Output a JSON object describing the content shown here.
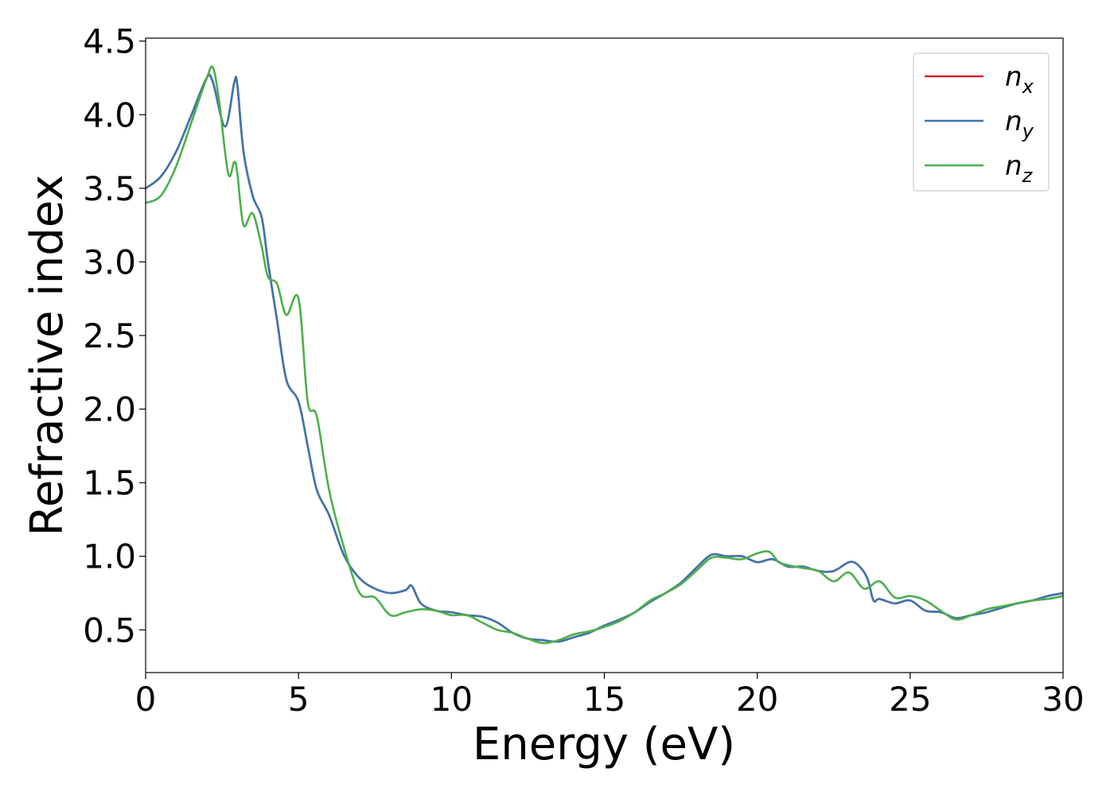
{
  "chart_data": {
    "type": "line",
    "title": "",
    "xlabel": "Energy (eV)",
    "ylabel": "Refractive index",
    "xlim": [
      0,
      30
    ],
    "ylim": [
      0.21,
      4.52
    ],
    "xticks": [
      0,
      5,
      10,
      15,
      20,
      25,
      30
    ],
    "yticks": [
      0.5,
      1.0,
      1.5,
      2.0,
      2.5,
      3.0,
      3.5,
      4.0,
      4.5
    ],
    "grid": false,
    "legend": "top-right",
    "colors": {
      "nx": "#d62728",
      "ny": "#3d76b0",
      "nz": "#4daf4a"
    },
    "series": [
      {
        "name": "n_x",
        "key": "nx",
        "label_base": "n",
        "label_sub": "x",
        "x": [
          0,
          0.5,
          1.0,
          1.5,
          2.0,
          2.2,
          2.6,
          2.9,
          3.0,
          3.2,
          3.5,
          3.8,
          4.0,
          4.3,
          4.6,
          5.0,
          5.3,
          5.6,
          6.0,
          6.5,
          7.0,
          7.5,
          8.0,
          8.5,
          8.7,
          9.0,
          9.5,
          10.0,
          10.5,
          11.0,
          11.5,
          12.0,
          12.5,
          13.0,
          13.5,
          14.0,
          14.5,
          15.0,
          15.5,
          16.0,
          16.5,
          17.0,
          17.5,
          18.0,
          18.5,
          19.0,
          19.5,
          20.0,
          20.5,
          21.0,
          21.5,
          22.0,
          22.5,
          23.0,
          23.3,
          23.6,
          23.8,
          24.0,
          24.5,
          25.0,
          25.5,
          26.0,
          26.5,
          27.0,
          27.5,
          28.0,
          28.5,
          29.0,
          29.5,
          30.0
        ],
        "y": [
          3.5,
          3.58,
          3.75,
          4.0,
          4.25,
          4.22,
          3.92,
          4.22,
          4.2,
          3.75,
          3.45,
          3.3,
          3.0,
          2.6,
          2.2,
          2.05,
          1.75,
          1.45,
          1.28,
          1.0,
          0.85,
          0.78,
          0.75,
          0.77,
          0.8,
          0.68,
          0.63,
          0.62,
          0.6,
          0.59,
          0.55,
          0.48,
          0.44,
          0.43,
          0.42,
          0.45,
          0.48,
          0.53,
          0.57,
          0.62,
          0.69,
          0.75,
          0.82,
          0.92,
          1.01,
          1.0,
          1.0,
          0.96,
          0.98,
          0.93,
          0.93,
          0.9,
          0.9,
          0.96,
          0.94,
          0.85,
          0.7,
          0.71,
          0.68,
          0.7,
          0.63,
          0.62,
          0.58,
          0.6,
          0.62,
          0.65,
          0.68,
          0.7,
          0.73,
          0.75
        ]
      },
      {
        "name": "n_y",
        "key": "ny",
        "label_base": "n",
        "label_sub": "y",
        "x": [
          0,
          0.5,
          1.0,
          1.5,
          2.0,
          2.2,
          2.6,
          2.9,
          3.0,
          3.2,
          3.5,
          3.8,
          4.0,
          4.3,
          4.6,
          5.0,
          5.3,
          5.6,
          6.0,
          6.5,
          7.0,
          7.5,
          8.0,
          8.5,
          8.7,
          9.0,
          9.5,
          10.0,
          10.5,
          11.0,
          11.5,
          12.0,
          12.5,
          13.0,
          13.5,
          14.0,
          14.5,
          15.0,
          15.5,
          16.0,
          16.5,
          17.0,
          17.5,
          18.0,
          18.5,
          19.0,
          19.5,
          20.0,
          20.5,
          21.0,
          21.5,
          22.0,
          22.5,
          23.0,
          23.3,
          23.6,
          23.8,
          24.0,
          24.5,
          25.0,
          25.5,
          26.0,
          26.5,
          27.0,
          27.5,
          28.0,
          28.5,
          29.0,
          29.5,
          30.0
        ],
        "y": [
          3.5,
          3.58,
          3.75,
          4.0,
          4.25,
          4.22,
          3.92,
          4.22,
          4.2,
          3.75,
          3.45,
          3.3,
          3.0,
          2.6,
          2.2,
          2.05,
          1.75,
          1.45,
          1.28,
          1.0,
          0.85,
          0.78,
          0.75,
          0.77,
          0.8,
          0.68,
          0.63,
          0.62,
          0.6,
          0.59,
          0.55,
          0.48,
          0.44,
          0.43,
          0.42,
          0.45,
          0.48,
          0.53,
          0.57,
          0.62,
          0.69,
          0.75,
          0.82,
          0.92,
          1.01,
          1.0,
          1.0,
          0.96,
          0.98,
          0.93,
          0.93,
          0.9,
          0.9,
          0.96,
          0.94,
          0.85,
          0.7,
          0.71,
          0.68,
          0.7,
          0.63,
          0.62,
          0.58,
          0.6,
          0.62,
          0.65,
          0.68,
          0.7,
          0.73,
          0.75
        ]
      },
      {
        "name": "n_z",
        "key": "nz",
        "label_base": "n",
        "label_sub": "z",
        "x": [
          0,
          0.5,
          1.0,
          1.5,
          2.0,
          2.2,
          2.4,
          2.7,
          2.9,
          3.0,
          3.2,
          3.5,
          3.8,
          4.0,
          4.3,
          4.6,
          5.0,
          5.3,
          5.6,
          6.0,
          6.5,
          7.0,
          7.5,
          8.0,
          8.5,
          9.0,
          9.5,
          10.0,
          10.5,
          11.0,
          11.5,
          12.0,
          12.5,
          13.0,
          13.5,
          14.0,
          14.5,
          15.0,
          15.5,
          16.0,
          16.5,
          17.0,
          17.5,
          18.0,
          18.5,
          19.0,
          19.5,
          20.0,
          20.4,
          20.7,
          21.0,
          21.5,
          22.0,
          22.5,
          23.0,
          23.5,
          24.0,
          24.5,
          25.0,
          25.5,
          26.0,
          26.5,
          27.0,
          27.5,
          28.0,
          28.5,
          29.0,
          29.5,
          30.0
        ],
        "y": [
          3.4,
          3.45,
          3.65,
          3.95,
          4.25,
          4.32,
          4.1,
          3.6,
          3.68,
          3.6,
          3.25,
          3.33,
          3.1,
          2.9,
          2.85,
          2.64,
          2.75,
          2.05,
          1.95,
          1.45,
          1.05,
          0.75,
          0.72,
          0.6,
          0.62,
          0.64,
          0.63,
          0.6,
          0.6,
          0.55,
          0.5,
          0.48,
          0.44,
          0.41,
          0.43,
          0.47,
          0.49,
          0.52,
          0.56,
          0.62,
          0.7,
          0.75,
          0.81,
          0.9,
          0.99,
          0.99,
          0.98,
          1.02,
          1.03,
          0.96,
          0.94,
          0.92,
          0.9,
          0.83,
          0.89,
          0.78,
          0.83,
          0.72,
          0.73,
          0.7,
          0.63,
          0.57,
          0.6,
          0.64,
          0.66,
          0.68,
          0.7,
          0.71,
          0.73
        ]
      }
    ]
  }
}
